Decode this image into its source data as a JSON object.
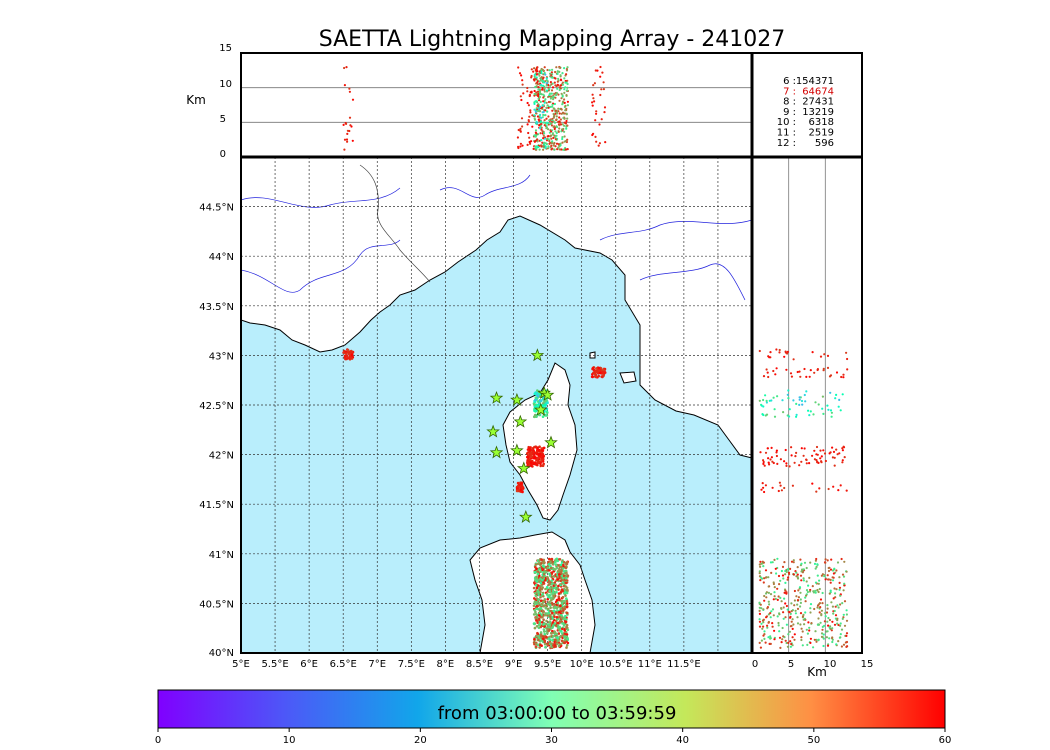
{
  "chart_data": {
    "type": "scatter",
    "title": "SAETTA Lightning Mapping Array - 241027",
    "altitude_panel": {
      "ylabel": "Km",
      "ylim": [
        0,
        15
      ],
      "yticks": [
        "0",
        "5",
        "10",
        "15"
      ]
    },
    "side_panel": {
      "xlabel": "Km",
      "xlim": [
        0,
        15
      ],
      "xticks": [
        "0",
        "5",
        "10",
        "15"
      ]
    },
    "map": {
      "lon_range": [
        5,
        12.5
      ],
      "lat_range": [
        40,
        45
      ],
      "lon_ticks": [
        "5°E",
        "5.5°E",
        "6°E",
        "6.5°E",
        "7°E",
        "7.5°E",
        "8°E",
        "8.5°E",
        "9°E",
        "9.5°E",
        "10°E",
        "10.5°E",
        "11°E",
        "11.5°E"
      ],
      "lat_ticks": [
        "40°N",
        "40.5°N",
        "41°N",
        "41.5°N",
        "42°N",
        "42.5°N",
        "43°N",
        "43.5°N",
        "44°N",
        "44.5°N"
      ],
      "sea_color": "#b9eefc",
      "grid": true
    },
    "station_counts": [
      {
        "label": "6 :",
        "value": "154371",
        "color": "#000000"
      },
      {
        "label": "7 :",
        "value": "64674",
        "color": "#d40000"
      },
      {
        "label": "8 :",
        "value": "27431",
        "color": "#000000"
      },
      {
        "label": "9 :",
        "value": "13219",
        "color": "#000000"
      },
      {
        "label": "10 :",
        "value": "6318",
        "color": "#000000"
      },
      {
        "label": "11 :",
        "value": "2519",
        "color": "#000000"
      },
      {
        "label": "12 :",
        "value": "596",
        "color": "#000000"
      }
    ],
    "stations": [
      {
        "lon": 9.35,
        "lat": 43.0
      },
      {
        "lon": 9.45,
        "lat": 42.62
      },
      {
        "lon": 9.5,
        "lat": 42.6
      },
      {
        "lon": 9.4,
        "lat": 42.45
      },
      {
        "lon": 8.75,
        "lat": 42.57
      },
      {
        "lon": 9.05,
        "lat": 42.55
      },
      {
        "lon": 9.1,
        "lat": 42.33
      },
      {
        "lon": 8.7,
        "lat": 42.23
      },
      {
        "lon": 8.75,
        "lat": 42.02
      },
      {
        "lon": 9.05,
        "lat": 42.04
      },
      {
        "lon": 9.55,
        "lat": 42.12
      },
      {
        "lon": 9.15,
        "lat": 41.86
      },
      {
        "lon": 9.18,
        "lat": 41.37
      }
    ],
    "clusters": [
      {
        "lon": [
          9.3,
          9.8
        ],
        "lat": [
          40.05,
          40.95
        ],
        "t": [
          35,
          60
        ],
        "n": 900
      },
      {
        "lon": [
          9.2,
          9.45
        ],
        "lat": [
          41.88,
          42.08
        ],
        "t": [
          56,
          60
        ],
        "n": 150
      },
      {
        "lon": [
          9.3,
          9.5
        ],
        "lat": [
          42.38,
          42.65
        ],
        "t": [
          15,
          45
        ],
        "n": 120
      },
      {
        "lon": [
          10.15,
          10.35
        ],
        "lat": [
          42.78,
          42.88
        ],
        "t": [
          55,
          60
        ],
        "n": 60
      },
      {
        "lon": [
          6.5,
          6.65
        ],
        "lat": [
          42.96,
          43.06
        ],
        "t": [
          55,
          60
        ],
        "n": 40
      },
      {
        "lon": [
          9.05,
          9.15
        ],
        "lat": [
          41.62,
          41.72
        ],
        "t": [
          55,
          60
        ],
        "n": 40
      }
    ],
    "colorbar": {
      "label": "from 03:00:00 to 03:59:59",
      "range": [
        0,
        60
      ],
      "ticks": [
        "0",
        "10",
        "20",
        "30",
        "40",
        "50",
        "60"
      ],
      "colormap": "rainbow"
    }
  }
}
